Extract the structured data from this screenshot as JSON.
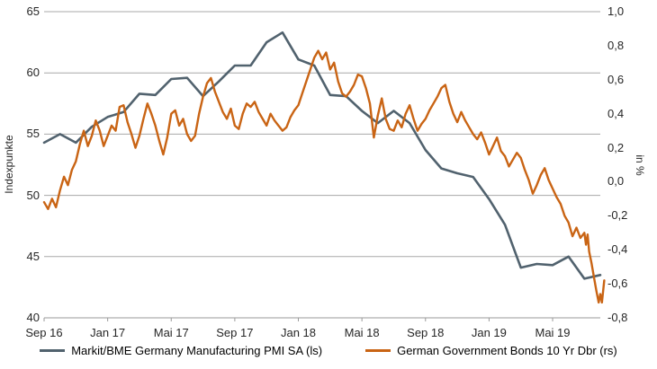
{
  "chart": {
    "left_axis": {
      "title": "Indexpunkte",
      "tick_labels": [
        "65",
        "60",
        "55",
        "50",
        "45",
        "40"
      ]
    },
    "right_axis": {
      "title": "in %",
      "tick_labels": [
        "1,0",
        "0,8",
        "0,6",
        "0,4",
        "0,2",
        "0,0",
        "-0,2",
        "-0,4",
        "-0,6",
        "-0,8"
      ]
    },
    "x_axis": {
      "tick_labels": [
        "Sep 16",
        "Jan 17",
        "Mai 17",
        "Sep 17",
        "Jan 18",
        "Mai 18",
        "Sep 18",
        "Jan 19",
        "Mai 19"
      ]
    },
    "legend": [
      {
        "label": "Markit/BME Germany Manufacturing PMI SA (ls)",
        "color": "#51626e"
      },
      {
        "label": "German Government Bonds 10 Yr Dbr (rs)",
        "color": "#c96414"
      }
    ],
    "colors": {
      "gridline": "#a8a8a8",
      "axis_line": "#9a9a9a",
      "tick_text": "#262626",
      "pmi_line": "#51626e",
      "bond_line": "#c96414"
    }
  },
  "chart_data": {
    "type": "line",
    "x_unit": "months_since_Sep_2016",
    "x_tick_months": [
      0,
      4,
      8,
      12,
      16,
      20,
      24,
      28,
      32
    ],
    "x_tick_labels": [
      "Sep 16",
      "Jan 17",
      "Mai 17",
      "Sep 17",
      "Jan 18",
      "Mai 18",
      "Sep 18",
      "Jan 19",
      "Mai 19"
    ],
    "left_axis": {
      "label": "Indexpunkte",
      "range": [
        40,
        65
      ],
      "ticks": [
        65,
        60,
        55,
        50,
        45,
        40
      ]
    },
    "right_axis": {
      "label": "in %",
      "range": [
        -0.8,
        1.0
      ],
      "ticks": [
        1.0,
        0.8,
        0.6,
        0.4,
        0.2,
        0.0,
        -0.2,
        -0.4,
        -0.6,
        -0.8
      ]
    },
    "grid": "horizontal-only",
    "legend_position": "bottom-center",
    "series": [
      {
        "name": "Markit/BME Germany Manufacturing PMI SA (ls)",
        "axis": "left",
        "color": "#51626e",
        "points": [
          [
            0,
            54.3
          ],
          [
            1,
            55.0
          ],
          [
            2,
            54.3
          ],
          [
            3,
            55.6
          ],
          [
            4,
            56.4
          ],
          [
            5,
            56.8
          ],
          [
            6,
            58.3
          ],
          [
            7,
            58.2
          ],
          [
            8,
            59.5
          ],
          [
            9,
            59.6
          ],
          [
            10,
            58.1
          ],
          [
            11,
            59.3
          ],
          [
            12,
            60.6
          ],
          [
            13,
            60.6
          ],
          [
            14,
            62.5
          ],
          [
            15,
            63.3
          ],
          [
            16,
            61.1
          ],
          [
            17,
            60.6
          ],
          [
            18,
            58.2
          ],
          [
            19,
            58.1
          ],
          [
            20,
            56.9
          ],
          [
            21,
            55.9
          ],
          [
            22,
            56.9
          ],
          [
            23,
            55.9
          ],
          [
            24,
            53.7
          ],
          [
            25,
            52.2
          ],
          [
            26,
            51.8
          ],
          [
            27,
            51.5
          ],
          [
            28,
            49.7
          ],
          [
            29,
            47.6
          ],
          [
            30,
            44.1
          ],
          [
            31,
            44.4
          ],
          [
            32,
            44.3
          ],
          [
            33,
            45.0
          ],
          [
            34,
            43.2
          ],
          [
            35,
            43.5
          ]
        ]
      },
      {
        "name": "German Government Bonds 10 Yr Dbr (rs)",
        "axis": "right",
        "color": "#c96414",
        "points": [
          [
            0,
            -0.12
          ],
          [
            0.25,
            -0.16
          ],
          [
            0.5,
            -0.1
          ],
          [
            0.75,
            -0.15
          ],
          [
            1,
            -0.05
          ],
          [
            1.25,
            0.03
          ],
          [
            1.5,
            -0.02
          ],
          [
            1.75,
            0.07
          ],
          [
            2,
            0.12
          ],
          [
            2.25,
            0.22
          ],
          [
            2.5,
            0.3
          ],
          [
            2.75,
            0.21
          ],
          [
            3,
            0.27
          ],
          [
            3.25,
            0.36
          ],
          [
            3.5,
            0.3
          ],
          [
            3.75,
            0.21
          ],
          [
            4,
            0.27
          ],
          [
            4.25,
            0.33
          ],
          [
            4.5,
            0.3
          ],
          [
            4.75,
            0.44
          ],
          [
            5,
            0.45
          ],
          [
            5.25,
            0.35
          ],
          [
            5.5,
            0.28
          ],
          [
            5.75,
            0.2
          ],
          [
            6,
            0.27
          ],
          [
            6.25,
            0.37
          ],
          [
            6.5,
            0.46
          ],
          [
            6.75,
            0.4
          ],
          [
            7,
            0.33
          ],
          [
            7.25,
            0.24
          ],
          [
            7.5,
            0.16
          ],
          [
            7.75,
            0.26
          ],
          [
            8,
            0.4
          ],
          [
            8.25,
            0.42
          ],
          [
            8.5,
            0.33
          ],
          [
            8.75,
            0.37
          ],
          [
            9,
            0.28
          ],
          [
            9.25,
            0.24
          ],
          [
            9.5,
            0.27
          ],
          [
            9.75,
            0.4
          ],
          [
            10,
            0.5
          ],
          [
            10.25,
            0.58
          ],
          [
            10.5,
            0.61
          ],
          [
            10.75,
            0.53
          ],
          [
            11,
            0.47
          ],
          [
            11.25,
            0.41
          ],
          [
            11.5,
            0.37
          ],
          [
            11.75,
            0.43
          ],
          [
            12,
            0.33
          ],
          [
            12.25,
            0.31
          ],
          [
            12.5,
            0.4
          ],
          [
            12.75,
            0.46
          ],
          [
            13,
            0.44
          ],
          [
            13.25,
            0.47
          ],
          [
            13.5,
            0.41
          ],
          [
            13.75,
            0.37
          ],
          [
            14,
            0.33
          ],
          [
            14.25,
            0.4
          ],
          [
            14.5,
            0.36
          ],
          [
            14.75,
            0.33
          ],
          [
            15,
            0.3
          ],
          [
            15.25,
            0.32
          ],
          [
            15.5,
            0.38
          ],
          [
            15.75,
            0.42
          ],
          [
            16,
            0.45
          ],
          [
            16.25,
            0.52
          ],
          [
            16.5,
            0.59
          ],
          [
            16.75,
            0.66
          ],
          [
            17,
            0.73
          ],
          [
            17.25,
            0.77
          ],
          [
            17.5,
            0.72
          ],
          [
            17.75,
            0.76
          ],
          [
            18,
            0.66
          ],
          [
            18.25,
            0.7
          ],
          [
            18.5,
            0.59
          ],
          [
            18.75,
            0.52
          ],
          [
            19,
            0.5
          ],
          [
            19.25,
            0.53
          ],
          [
            19.5,
            0.57
          ],
          [
            19.75,
            0.63
          ],
          [
            20,
            0.62
          ],
          [
            20.25,
            0.55
          ],
          [
            20.5,
            0.46
          ],
          [
            20.75,
            0.26
          ],
          [
            21,
            0.39
          ],
          [
            21.25,
            0.49
          ],
          [
            21.5,
            0.37
          ],
          [
            21.75,
            0.31
          ],
          [
            22,
            0.3
          ],
          [
            22.25,
            0.36
          ],
          [
            22.5,
            0.32
          ],
          [
            22.75,
            0.4
          ],
          [
            23,
            0.45
          ],
          [
            23.25,
            0.37
          ],
          [
            23.5,
            0.3
          ],
          [
            23.75,
            0.34
          ],
          [
            24,
            0.37
          ],
          [
            24.25,
            0.42
          ],
          [
            24.5,
            0.46
          ],
          [
            24.75,
            0.5
          ],
          [
            25,
            0.55
          ],
          [
            25.25,
            0.57
          ],
          [
            25.5,
            0.47
          ],
          [
            25.75,
            0.4
          ],
          [
            26,
            0.35
          ],
          [
            26.25,
            0.41
          ],
          [
            26.5,
            0.36
          ],
          [
            26.75,
            0.32
          ],
          [
            27,
            0.28
          ],
          [
            27.25,
            0.25
          ],
          [
            27.5,
            0.29
          ],
          [
            27.75,
            0.23
          ],
          [
            28,
            0.16
          ],
          [
            28.25,
            0.21
          ],
          [
            28.5,
            0.26
          ],
          [
            28.75,
            0.18
          ],
          [
            29,
            0.15
          ],
          [
            29.25,
            0.09
          ],
          [
            29.5,
            0.13
          ],
          [
            29.75,
            0.17
          ],
          [
            30,
            0.14
          ],
          [
            30.25,
            0.07
          ],
          [
            30.5,
            0.01
          ],
          [
            30.75,
            -0.07
          ],
          [
            31,
            -0.02
          ],
          [
            31.25,
            0.04
          ],
          [
            31.5,
            0.08
          ],
          [
            31.75,
            0.01
          ],
          [
            32,
            -0.04
          ],
          [
            32.25,
            -0.09
          ],
          [
            32.5,
            -0.13
          ],
          [
            32.75,
            -0.2
          ],
          [
            33,
            -0.24
          ],
          [
            33.25,
            -0.32
          ],
          [
            33.5,
            -0.27
          ],
          [
            33.75,
            -0.33
          ],
          [
            34,
            -0.3
          ],
          [
            34.1,
            -0.37
          ],
          [
            34.2,
            -0.31
          ],
          [
            34.3,
            -0.41
          ],
          [
            34.45,
            -0.48
          ],
          [
            34.6,
            -0.56
          ],
          [
            34.75,
            -0.64
          ],
          [
            34.9,
            -0.71
          ],
          [
            35.0,
            -0.66
          ],
          [
            35.1,
            -0.71
          ],
          [
            35.25,
            -0.58
          ]
        ]
      }
    ]
  }
}
